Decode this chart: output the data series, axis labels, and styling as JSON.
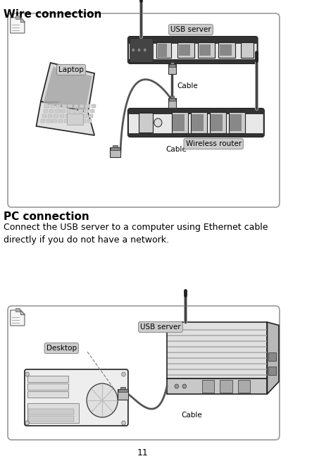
{
  "page_title": "Wire connection",
  "section2_title": "PC connection",
  "section2_body": "Connect the USB server to a computer using Ethernet cable\ndirectly if you do not have a network.",
  "page_number": "11",
  "label_usb1": "USB server",
  "label_laptop": "Laptop",
  "label_cable1": "Cable",
  "label_cable2": "Cable",
  "label_router": "Wireless router",
  "label_usb2": "USB server",
  "label_desktop": "Desktop",
  "label_cable3": "Cable",
  "bg": "#ffffff",
  "box_edge": "#aaaaaa",
  "device_edge": "#222222",
  "device_fill": "#f0f0f0",
  "device_dark": "#333333",
  "label_bg": "#cccccc",
  "title_fs": 11,
  "label_fs": 7.5,
  "body_fs": 9
}
